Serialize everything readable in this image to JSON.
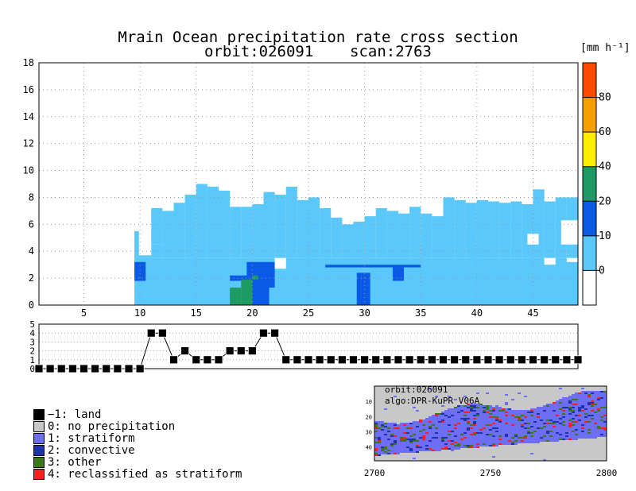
{
  "title": {
    "line1": "Mrain Ocean precipitation rate cross section",
    "line2": "orbit:026091    scan:2763"
  },
  "colors": {
    "grid": "#999999",
    "type_land": "#000000",
    "type_none": "#c8c8c8",
    "type_stratiform": "#6e6ef5",
    "type_convective": "#1e32aa",
    "type_other": "#3c7814",
    "type_reclassified": "#ff1e1e"
  },
  "chart_data": [
    {
      "type": "heatmap",
      "title": "Mrain Ocean precipitation rate cross section",
      "xlim": [
        1,
        49
      ],
      "ylim": [
        0,
        18
      ],
      "x_ticks": [
        "5",
        "10",
        "15",
        "20",
        "25",
        "30",
        "35",
        "40",
        "45"
      ],
      "y_ticks": [
        "0",
        "2",
        "4",
        "6",
        "8",
        "10",
        "12",
        "14",
        "16",
        "18"
      ],
      "grid": true,
      "cells": [
        [
          9.5,
          9.9,
          3.5,
          5.5,
          "#5ac8fa"
        ],
        [
          9.9,
          11,
          3.5,
          3.7,
          "#5ac8fa"
        ],
        [
          11,
          12,
          3.5,
          4.5,
          "#5ac8fa"
        ],
        [
          11,
          12,
          4.5,
          7.2,
          "#5ac8fa"
        ],
        [
          12,
          13,
          3.5,
          7.0,
          "#5ac8fa"
        ],
        [
          13,
          14,
          3.5,
          7.6,
          "#5ac8fa"
        ],
        [
          14,
          15,
          3.5,
          8.2,
          "#5ac8fa"
        ],
        [
          15,
          16,
          3.5,
          9.0,
          "#5ac8fa"
        ],
        [
          16,
          17,
          3.5,
          8.8,
          "#5ac8fa"
        ],
        [
          17,
          18,
          3.5,
          8.5,
          "#5ac8fa"
        ],
        [
          18,
          19,
          3.5,
          7.3,
          "#5ac8fa"
        ],
        [
          19,
          20,
          3.5,
          7.3,
          "#5ac8fa"
        ],
        [
          20,
          21,
          3.5,
          7.5,
          "#5ac8fa"
        ],
        [
          21,
          22,
          3.5,
          8.4,
          "#5ac8fa"
        ],
        [
          22,
          23,
          3.5,
          8.2,
          "#5ac8fa"
        ],
        [
          23,
          24,
          3.5,
          8.8,
          "#5ac8fa"
        ],
        [
          24,
          25,
          3.5,
          7.8,
          "#5ac8fa"
        ],
        [
          25,
          26,
          3.5,
          8.0,
          "#5ac8fa"
        ],
        [
          26,
          27,
          3.5,
          7.2,
          "#5ac8fa"
        ],
        [
          27,
          28,
          3.5,
          6.5,
          "#5ac8fa"
        ],
        [
          28,
          29,
          3.5,
          6.0,
          "#5ac8fa"
        ],
        [
          29,
          30,
          3.5,
          6.2,
          "#5ac8fa"
        ],
        [
          30,
          31,
          3.5,
          6.6,
          "#5ac8fa"
        ],
        [
          31,
          32,
          3.5,
          7.2,
          "#5ac8fa"
        ],
        [
          32,
          33,
          3.5,
          7.0,
          "#5ac8fa"
        ],
        [
          33,
          34,
          3.5,
          6.8,
          "#5ac8fa"
        ],
        [
          34,
          35,
          3.5,
          7.3,
          "#5ac8fa"
        ],
        [
          35,
          36,
          3.5,
          6.8,
          "#5ac8fa"
        ],
        [
          36,
          37,
          3.5,
          6.6,
          "#5ac8fa"
        ],
        [
          37,
          38,
          3.5,
          8.0,
          "#5ac8fa"
        ],
        [
          38,
          39,
          3.5,
          7.8,
          "#5ac8fa"
        ],
        [
          39,
          40,
          3.5,
          7.6,
          "#5ac8fa"
        ],
        [
          40,
          41,
          3.5,
          7.8,
          "#5ac8fa"
        ],
        [
          41,
          42,
          3.5,
          7.7,
          "#5ac8fa"
        ],
        [
          42,
          43,
          3.5,
          7.6,
          "#5ac8fa"
        ],
        [
          43,
          44,
          3.5,
          7.7,
          "#5ac8fa"
        ],
        [
          44,
          45,
          3.5,
          7.5,
          "#5ac8fa"
        ],
        [
          45,
          46,
          3.5,
          8.6,
          "#5ac8fa"
        ],
        [
          46,
          47,
          3.5,
          7.7,
          "#5ac8fa"
        ],
        [
          47,
          48,
          3.5,
          8.0,
          "#5ac8fa"
        ],
        [
          48,
          49,
          3.5,
          8.0,
          "#5ac8fa"
        ],
        [
          9.5,
          49,
          0,
          3.5,
          "#5ac8fa"
        ],
        [
          9.5,
          10.5,
          1.8,
          3.2,
          "#0a5ae6"
        ],
        [
          19.5,
          22,
          1.3,
          3.2,
          "#0a5ae6"
        ],
        [
          18,
          20,
          1.8,
          2.2,
          "#0a5ae6"
        ],
        [
          19.8,
          21.5,
          0,
          1.3,
          "#0a5ae6"
        ],
        [
          29.3,
          30.5,
          0,
          2.4,
          "#0a5ae6"
        ],
        [
          26.5,
          35,
          2.8,
          3.0,
          "#0a5ae6"
        ],
        [
          32.5,
          33.5,
          1.8,
          2.8,
          "#0a5ae6"
        ],
        [
          18,
          19,
          0,
          1.3,
          "#1e9b64"
        ],
        [
          19,
          20,
          0,
          1.9,
          "#1e9b64"
        ],
        [
          20,
          20.5,
          1.9,
          2.2,
          "#1e9b64"
        ],
        [
          22,
          23,
          2.7,
          3.5,
          "#ffffff"
        ],
        [
          46,
          47,
          3.0,
          3.5,
          "#ffffff"
        ],
        [
          48,
          49,
          3.2,
          3.5,
          "#ffffff"
        ],
        [
          47.5,
          49,
          4.5,
          6.3,
          "#ffffff"
        ],
        [
          44.5,
          45.5,
          4.5,
          5.3,
          "#ffffff"
        ]
      ],
      "colorbar": {
        "unit_label": "[mm h⁻¹]",
        "labels": [
          "0",
          "10",
          "20",
          "40",
          "60",
          "80"
        ],
        "bins": [
          "#ffffff",
          "#5ac8fa",
          "#0a5ae6",
          "#1e9b64",
          "#ffee00",
          "#f5a000",
          "#ff4b00"
        ]
      }
    },
    {
      "type": "line",
      "title": "",
      "xlim": [
        1,
        49
      ],
      "ylim": [
        0,
        5
      ],
      "y_ticks": [
        "0",
        "1",
        "2",
        "3",
        "4",
        "5"
      ],
      "x": [
        1,
        2,
        3,
        4,
        5,
        6,
        7,
        8,
        9,
        10,
        11,
        12,
        13,
        14,
        15,
        16,
        17,
        18,
        19,
        20,
        21,
        22,
        23,
        24,
        25,
        26,
        27,
        28,
        29,
        30,
        31,
        32,
        33,
        34,
        35,
        36,
        37,
        38,
        39,
        40,
        41,
        42,
        43,
        44,
        45,
        46,
        47,
        48,
        49
      ],
      "y": [
        0,
        0,
        0,
        0,
        0,
        0,
        0,
        0,
        0,
        0,
        4,
        4,
        1,
        2,
        1,
        1,
        1,
        2,
        2,
        2,
        4,
        4,
        1,
        1,
        1,
        1,
        1,
        1,
        1,
        1,
        1,
        1,
        1,
        1,
        1,
        1,
        1,
        1,
        1,
        1,
        1,
        1,
        1,
        1,
        1,
        1,
        1,
        1,
        1
      ]
    },
    {
      "type": "heatmap",
      "title": "",
      "x_ticks": [
        "2700",
        "2750",
        "2800"
      ],
      "y_ticks": [
        "10",
        "20",
        "30",
        "40"
      ]
    }
  ],
  "info": {
    "orbit": "orbit:026091",
    "algo": "algo:DPR-KuPR V06A"
  },
  "legend": [
    {
      "label": "−1: land",
      "color": "#000000"
    },
    {
      "label": "0: no precipitation",
      "color": "#c8c8c8"
    },
    {
      "label": "1: stratiform",
      "color": "#6e6ef5"
    },
    {
      "label": "2: convective",
      "color": "#1e32aa"
    },
    {
      "label": "3: other",
      "color": "#3c7814"
    },
    {
      "label": "4: reclassified as stratiform",
      "color": "#ff1e1e"
    }
  ]
}
